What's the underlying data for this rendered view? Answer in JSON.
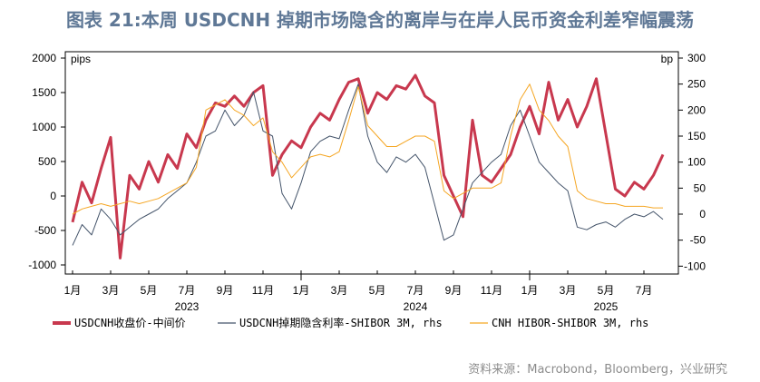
{
  "title": "图表 21:本周 USDCNH 掉期市场隐含的离岸与在岸人民币资金利差窄幅震荡",
  "source": "资料来源：Macrobond，Bloomberg，兴业研究",
  "chart_data": {
    "type": "line",
    "title": "图表 21:本周 USDCNH 掉期市场隐含的离岸与在岸人民币资金利差窄幅震荡",
    "x_start": "2023-01",
    "x_step_months": 0.5,
    "left_axis": {
      "label": "pips",
      "ylim": [
        -1000,
        2000
      ],
      "ticks": [
        "2000",
        "1500",
        "1000",
        "500",
        "0",
        "-500",
        "-1000"
      ]
    },
    "right_axis": {
      "label": "bp",
      "ylim": [
        -100,
        300
      ],
      "ticks": [
        "300",
        "250",
        "200",
        "150",
        "100",
        "50",
        "0",
        "-50",
        "-100"
      ]
    },
    "x_ticks": [
      "1月",
      "3月",
      "5月",
      "7月",
      "9月",
      "11月",
      "1月",
      "3月",
      "5月",
      "7月",
      "9月",
      "11月",
      "1月",
      "3月",
      "5月",
      "7月"
    ],
    "years": [
      "2023",
      "2024",
      "2025"
    ],
    "grid": false,
    "legend_position": "bottom",
    "series": [
      {
        "name": "USDCNH收盘价-中间价",
        "axis": "left",
        "color": "#c8384e",
        "values": [
          -380,
          200,
          -100,
          400,
          850,
          -900,
          300,
          100,
          500,
          200,
          600,
          400,
          900,
          700,
          1100,
          1350,
          1300,
          1450,
          1300,
          1500,
          1600,
          300,
          600,
          800,
          700,
          1000,
          1200,
          1100,
          1400,
          1650,
          1700,
          1200,
          1500,
          1400,
          1600,
          1550,
          1750,
          1450,
          1350,
          300,
          0,
          -300,
          1100,
          300,
          200,
          400,
          600,
          1000,
          1300,
          900,
          1650,
          1100,
          1400,
          1000,
          1300,
          1700,
          900,
          100,
          0,
          200,
          100,
          300,
          600
        ]
      },
      {
        "name": "USDCNH掉期隐含利率-SHIBOR 3M, rhs",
        "axis": "right",
        "color": "#44546a",
        "values": [
          -60,
          -20,
          -40,
          10,
          -10,
          -40,
          -25,
          -10,
          0,
          10,
          30,
          45,
          60,
          100,
          150,
          160,
          200,
          170,
          190,
          235,
          160,
          150,
          40,
          10,
          60,
          120,
          140,
          150,
          145,
          200,
          250,
          150,
          100,
          80,
          110,
          100,
          115,
          90,
          20,
          -50,
          -40,
          10,
          60,
          80,
          100,
          115,
          170,
          200,
          150,
          100,
          80,
          60,
          45,
          -25,
          -30,
          -20,
          -15,
          -25,
          -10,
          0,
          -5,
          5,
          -10
        ]
      },
      {
        "name": "CNH HIBOR-SHIBOR 3M, rhs",
        "axis": "right",
        "color": "#f5a623",
        "values": [
          0,
          10,
          15,
          20,
          15,
          20,
          25,
          20,
          25,
          30,
          40,
          50,
          60,
          90,
          200,
          210,
          220,
          200,
          190,
          170,
          185,
          120,
          100,
          70,
          90,
          110,
          115,
          110,
          120,
          180,
          245,
          170,
          150,
          130,
          130,
          140,
          150,
          150,
          140,
          45,
          30,
          40,
          50,
          50,
          50,
          60,
          150,
          220,
          250,
          200,
          180,
          150,
          130,
          45,
          30,
          25,
          20,
          20,
          15,
          15,
          15,
          12,
          12
        ]
      }
    ]
  }
}
